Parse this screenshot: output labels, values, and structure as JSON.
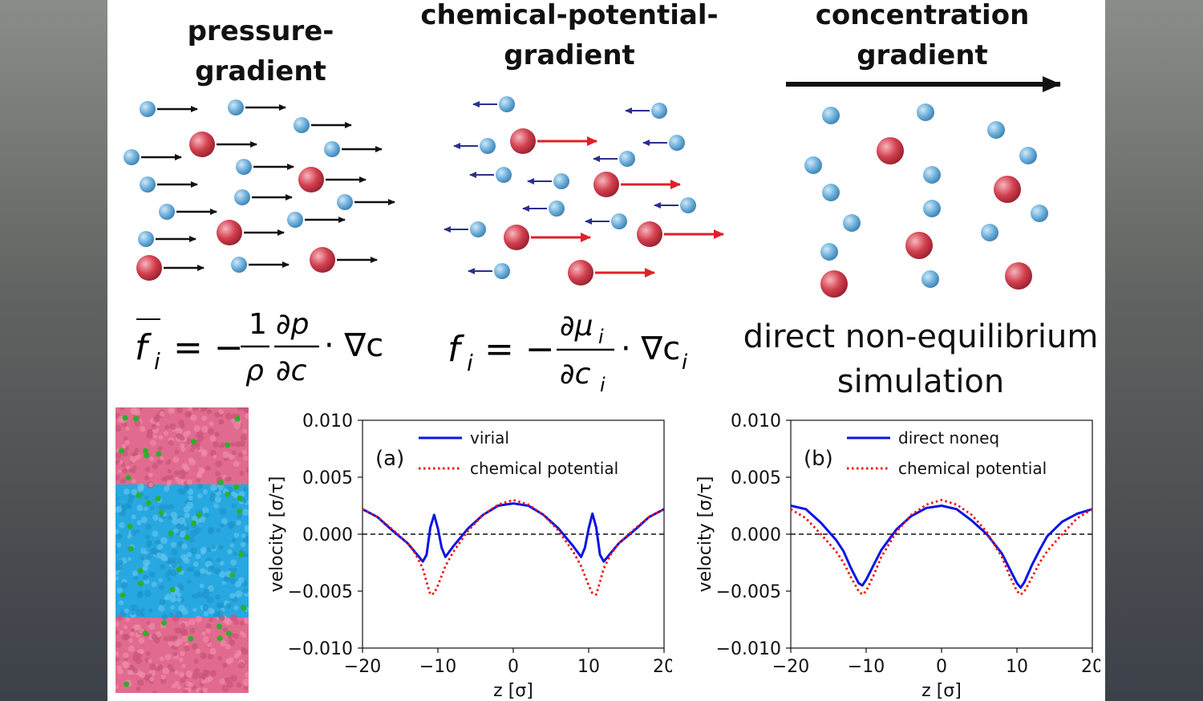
{
  "columns": {
    "pressure": {
      "title": "pressure-gradient"
    },
    "chemical": {
      "title_line1": "chemical-potential-",
      "title_line2": "gradient"
    },
    "concentration": {
      "title_line1": "concentration",
      "title_line2": "gradient"
    }
  },
  "equations": {
    "pressure": {
      "lhs": "f",
      "sub": "i",
      "equals": "= −",
      "num": "1",
      "den": "ρ",
      "dnum": "∂p",
      "dden": "∂c",
      "tail": "· ∇c"
    },
    "chemical": {
      "lhs": "f",
      "sub": "i",
      "equals": "= −",
      "dnum": "∂μ",
      "dnum_sub": "i",
      "dden": "∂c",
      "dden_sub": "i",
      "tail": "· ∇c",
      "tail_sub": "i"
    },
    "direct": {
      "line1": "direct non-equilibrium",
      "line2": "simulation"
    }
  },
  "colors": {
    "solvent_particle": "#6fb1dc",
    "solute_particle": "#d2404f",
    "pressure_arrow": "#111111",
    "solvent_arrow": "#2a2f8f",
    "solute_arrow": "#e0202a",
    "md_top": "#e06b8e",
    "md_middle": "#27a8e0",
    "md_impurity": "#2bb02b",
    "series_main": "#0a14e6",
    "series_ref": "#ee1111"
  },
  "chart_data": [
    {
      "type": "line",
      "panel_label": "(a)",
      "xlabel": "z [σ]",
      "ylabel": "velocity [σ/τ]",
      "xlim": [
        -20,
        20
      ],
      "ylim": [
        -0.01,
        0.01
      ],
      "xticks": [
        "−20",
        "−10",
        "0",
        "10",
        "20"
      ],
      "yticks": [
        "0.010",
        "0.005",
        "0.000",
        "−0.005",
        "−0.010"
      ],
      "legend_position": "top",
      "series": [
        {
          "name": "virial",
          "style": "solid",
          "x": [
            -20,
            -18,
            -16,
            -14,
            -13,
            -12,
            -11.5,
            -11,
            -10.5,
            -10,
            -9.5,
            -9,
            -8,
            -6,
            -4,
            -2,
            0,
            2,
            4,
            6,
            8,
            9,
            9.5,
            10,
            10.5,
            11,
            11.5,
            12,
            13,
            14,
            16,
            18,
            20
          ],
          "y": [
            0.0022,
            0.0015,
            0.0003,
            -0.0008,
            -0.0016,
            -0.0024,
            -0.0018,
            0.0006,
            0.0017,
            0.0005,
            -0.0012,
            -0.002,
            -0.0011,
            0.0005,
            0.0017,
            0.0025,
            0.0027,
            0.0025,
            0.0017,
            0.0005,
            -0.0011,
            -0.002,
            -0.0012,
            0.0005,
            0.0018,
            0.0006,
            -0.0018,
            -0.0024,
            -0.0016,
            -0.0008,
            0.0003,
            0.0015,
            0.0022
          ]
        },
        {
          "name": "chemical potential",
          "style": "dotted",
          "x": [
            -20,
            -18,
            -16,
            -14,
            -13,
            -12,
            -11.5,
            -11,
            -10.5,
            -10,
            -9,
            -8,
            -6,
            -4,
            -2,
            0,
            2,
            4,
            6,
            8,
            9,
            10,
            10.5,
            11,
            11.5,
            12,
            13,
            14,
            16,
            18,
            20
          ],
          "y": [
            0.0022,
            0.0015,
            0.0004,
            -0.0008,
            -0.0017,
            -0.003,
            -0.0042,
            -0.0053,
            -0.0052,
            -0.0045,
            -0.0028,
            -0.0016,
            0.0003,
            0.0017,
            0.0026,
            0.003,
            0.0026,
            0.0017,
            0.0003,
            -0.0016,
            -0.0028,
            -0.0045,
            -0.0052,
            -0.0053,
            -0.0042,
            -0.003,
            -0.0017,
            -0.0008,
            0.0004,
            0.0015,
            0.0022
          ]
        }
      ]
    },
    {
      "type": "line",
      "panel_label": "(b)",
      "xlabel": "z [σ]",
      "ylabel": "velocity [σ/τ]",
      "xlim": [
        -20,
        20
      ],
      "ylim": [
        -0.01,
        0.01
      ],
      "xticks": [
        "−20",
        "−10",
        "0",
        "10",
        "20"
      ],
      "yticks": [
        "0.010",
        "0.005",
        "0.000",
        "−0.005",
        "−0.010"
      ],
      "legend_position": "top",
      "series": [
        {
          "name": "direct noneq",
          "style": "solid",
          "x": [
            -20,
            -18,
            -16,
            -14,
            -13,
            -12,
            -11,
            -10.5,
            -10,
            -9,
            -8,
            -6,
            -4,
            -2,
            0,
            2,
            4,
            6,
            8,
            9,
            10,
            10.5,
            11,
            12,
            13,
            14,
            16,
            18,
            20
          ],
          "y": [
            0.0025,
            0.0022,
            0.001,
            -0.0005,
            -0.0015,
            -0.003,
            -0.0043,
            -0.0045,
            -0.004,
            -0.0027,
            -0.0014,
            0.0004,
            0.0016,
            0.0023,
            0.0025,
            0.0022,
            0.0012,
            0.0,
            -0.0017,
            -0.003,
            -0.0043,
            -0.0047,
            -0.0042,
            -0.0027,
            -0.0014,
            -0.0002,
            0.0011,
            0.0018,
            0.0022
          ]
        },
        {
          "name": "chemical potential",
          "style": "dotted",
          "x": [
            -20,
            -18,
            -16,
            -14,
            -13,
            -12,
            -11,
            -10.5,
            -10,
            -9,
            -8,
            -6,
            -4,
            -2,
            0,
            2,
            4,
            6,
            8,
            9,
            10,
            10.5,
            11,
            12,
            13,
            14,
            16,
            18,
            20
          ],
          "y": [
            0.0022,
            0.0014,
            0.0,
            -0.0015,
            -0.0025,
            -0.0038,
            -0.005,
            -0.0053,
            -0.005,
            -0.0036,
            -0.002,
            0.0002,
            0.0017,
            0.0026,
            0.003,
            0.0026,
            0.0017,
            0.0002,
            -0.002,
            -0.0036,
            -0.005,
            -0.0053,
            -0.005,
            -0.0038,
            -0.0025,
            -0.0015,
            0.0,
            0.0014,
            0.0022
          ]
        }
      ]
    }
  ]
}
